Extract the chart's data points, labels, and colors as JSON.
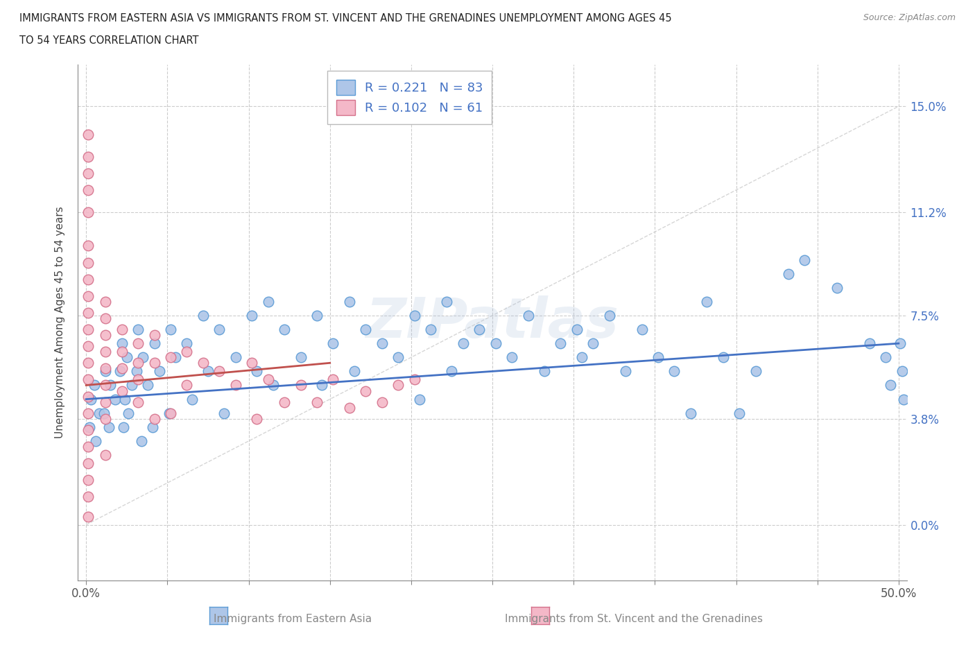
{
  "title_line1": "IMMIGRANTS FROM EASTERN ASIA VS IMMIGRANTS FROM ST. VINCENT AND THE GRENADINES UNEMPLOYMENT AMONG AGES 45",
  "title_line2": "TO 54 YEARS CORRELATION CHART",
  "source_text": "Source: ZipAtlas.com",
  "ylabel": "Unemployment Among Ages 45 to 54 years",
  "xlim": [
    -0.005,
    0.505
  ],
  "ylim": [
    -0.02,
    0.165
  ],
  "xtick_show": [
    0.0,
    0.5
  ],
  "xticklabels_show": [
    "0.0%",
    "50.0%"
  ],
  "xtick_minor": [
    0.05,
    0.1,
    0.15,
    0.2,
    0.25,
    0.3,
    0.35,
    0.4,
    0.45
  ],
  "yticks": [
    0.0,
    0.038,
    0.075,
    0.112,
    0.15
  ],
  "yticklabels": [
    "0.0%",
    "3.8%",
    "7.5%",
    "11.2%",
    "15.0%"
  ],
  "blue_color": "#aec6e8",
  "blue_edge": "#5b9bd5",
  "pink_color": "#f4b8c8",
  "pink_edge": "#d4708a",
  "trendline_blue": "#4472c4",
  "trendline_pink": "#c0504d",
  "trendline_pink_dashed": "#d4a0a0",
  "watermark": "ZIPatlas",
  "legend_r_blue": "0.221",
  "legend_n_blue": "83",
  "legend_r_pink": "0.102",
  "legend_n_pink": "61",
  "label_blue": "Immigrants from Eastern Asia",
  "label_pink": "Immigrants from St. Vincent and the Grenadines",
  "blue_scatter_x": [
    0.005,
    0.003,
    0.008,
    0.002,
    0.006,
    0.012,
    0.015,
    0.018,
    0.011,
    0.014,
    0.022,
    0.025,
    0.021,
    0.028,
    0.024,
    0.026,
    0.023,
    0.032,
    0.035,
    0.031,
    0.038,
    0.034,
    0.042,
    0.045,
    0.041,
    0.052,
    0.055,
    0.051,
    0.062,
    0.065,
    0.072,
    0.075,
    0.082,
    0.085,
    0.092,
    0.102,
    0.105,
    0.112,
    0.115,
    0.122,
    0.132,
    0.142,
    0.145,
    0.152,
    0.162,
    0.165,
    0.172,
    0.182,
    0.192,
    0.202,
    0.205,
    0.212,
    0.222,
    0.225,
    0.232,
    0.242,
    0.252,
    0.262,
    0.272,
    0.282,
    0.292,
    0.302,
    0.305,
    0.312,
    0.322,
    0.332,
    0.342,
    0.352,
    0.362,
    0.372,
    0.382,
    0.392,
    0.402,
    0.412,
    0.432,
    0.442,
    0.462,
    0.482,
    0.492,
    0.495,
    0.501,
    0.502,
    0.503
  ],
  "blue_scatter_y": [
    0.05,
    0.045,
    0.04,
    0.035,
    0.03,
    0.055,
    0.05,
    0.045,
    0.04,
    0.035,
    0.065,
    0.06,
    0.055,
    0.05,
    0.045,
    0.04,
    0.035,
    0.07,
    0.06,
    0.055,
    0.05,
    0.03,
    0.065,
    0.055,
    0.035,
    0.07,
    0.06,
    0.04,
    0.065,
    0.045,
    0.075,
    0.055,
    0.07,
    0.04,
    0.06,
    0.075,
    0.055,
    0.08,
    0.05,
    0.07,
    0.06,
    0.075,
    0.05,
    0.065,
    0.08,
    0.055,
    0.07,
    0.065,
    0.06,
    0.075,
    0.045,
    0.07,
    0.08,
    0.055,
    0.065,
    0.07,
    0.065,
    0.06,
    0.075,
    0.055,
    0.065,
    0.07,
    0.06,
    0.065,
    0.075,
    0.055,
    0.07,
    0.06,
    0.055,
    0.04,
    0.08,
    0.06,
    0.04,
    0.055,
    0.09,
    0.095,
    0.085,
    0.065,
    0.06,
    0.05,
    0.065,
    0.055,
    0.045
  ],
  "pink_scatter_x": [
    0.001,
    0.001,
    0.001,
    0.001,
    0.001,
    0.001,
    0.001,
    0.001,
    0.001,
    0.001,
    0.001,
    0.001,
    0.001,
    0.001,
    0.001,
    0.001,
    0.001,
    0.001,
    0.001,
    0.001,
    0.001,
    0.001,
    0.012,
    0.012,
    0.012,
    0.012,
    0.012,
    0.012,
    0.012,
    0.012,
    0.012,
    0.022,
    0.022,
    0.022,
    0.022,
    0.032,
    0.032,
    0.032,
    0.032,
    0.042,
    0.042,
    0.042,
    0.052,
    0.052,
    0.062,
    0.062,
    0.072,
    0.082,
    0.092,
    0.102,
    0.105,
    0.112,
    0.122,
    0.132,
    0.142,
    0.152,
    0.162,
    0.172,
    0.182,
    0.192,
    0.202
  ],
  "pink_scatter_y": [
    0.14,
    0.132,
    0.126,
    0.12,
    0.112,
    0.1,
    0.094,
    0.088,
    0.082,
    0.076,
    0.07,
    0.064,
    0.058,
    0.052,
    0.046,
    0.04,
    0.034,
    0.028,
    0.022,
    0.016,
    0.01,
    0.003,
    0.08,
    0.074,
    0.068,
    0.062,
    0.056,
    0.05,
    0.044,
    0.038,
    0.025,
    0.07,
    0.062,
    0.056,
    0.048,
    0.065,
    0.058,
    0.052,
    0.044,
    0.068,
    0.058,
    0.038,
    0.06,
    0.04,
    0.062,
    0.05,
    0.058,
    0.055,
    0.05,
    0.058,
    0.038,
    0.052,
    0.044,
    0.05,
    0.044,
    0.052,
    0.042,
    0.048,
    0.044,
    0.05,
    0.052
  ]
}
